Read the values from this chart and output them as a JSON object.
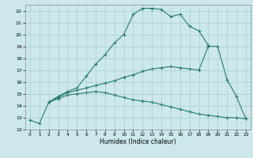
{
  "xlabel": "Humidex (Indice chaleur)",
  "bg_color": "#cce8eb",
  "grid_color": "#aacdd4",
  "line_color": "#2a7a72",
  "xlim": [
    -0.5,
    23.5
  ],
  "ylim": [
    12,
    22.5
  ],
  "yticks": [
    12,
    13,
    14,
    15,
    16,
    17,
    18,
    19,
    20,
    21,
    22
  ],
  "xticks": [
    0,
    1,
    2,
    3,
    4,
    5,
    6,
    7,
    8,
    9,
    10,
    11,
    12,
    13,
    14,
    15,
    16,
    17,
    18,
    19,
    20,
    21,
    22,
    23
  ],
  "line1_x": [
    0,
    1,
    2,
    3,
    4,
    5,
    6,
    7,
    8,
    9,
    10,
    11,
    12,
    13,
    14,
    15,
    16,
    17,
    18,
    19
  ],
  "line1_y": [
    12.8,
    12.5,
    14.3,
    14.8,
    15.2,
    15.5,
    16.5,
    17.5,
    18.3,
    19.3,
    20.0,
    21.7,
    22.2,
    22.2,
    22.1,
    21.5,
    21.7,
    20.7,
    20.3,
    19.1
  ],
  "line2_x": [
    2,
    3,
    4,
    5,
    6,
    7,
    8,
    9,
    10,
    11,
    12,
    13,
    14,
    15,
    16,
    17,
    18,
    19,
    20,
    21,
    22,
    23
  ],
  "line2_y": [
    14.3,
    14.6,
    14.9,
    15.0,
    15.1,
    15.2,
    15.1,
    14.9,
    14.7,
    14.5,
    14.4,
    14.3,
    14.1,
    13.9,
    13.7,
    13.5,
    13.3,
    13.2,
    13.1,
    13.0,
    13.0,
    12.9
  ],
  "line3_x": [
    2,
    3,
    4,
    5,
    6,
    7,
    8,
    9,
    10,
    11,
    12,
    13,
    14,
    15,
    16,
    17,
    18,
    19,
    20,
    21,
    22,
    23
  ],
  "line3_y": [
    14.3,
    14.7,
    15.1,
    15.3,
    15.5,
    15.7,
    15.9,
    16.1,
    16.4,
    16.6,
    16.9,
    17.1,
    17.2,
    17.3,
    17.2,
    17.1,
    17.0,
    19.0,
    19.0,
    16.2,
    14.8,
    12.9
  ]
}
